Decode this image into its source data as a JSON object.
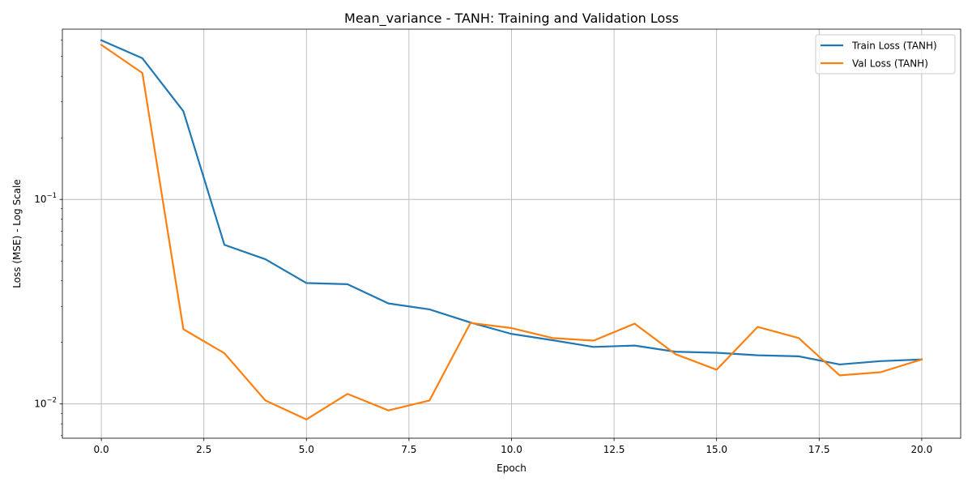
{
  "chart_data": {
    "type": "line",
    "title": "Mean_variance - TANH: Training and Validation Loss",
    "xlabel": "Epoch",
    "ylabel": "Loss (MSE) - Log Scale",
    "yscale": "log",
    "xlim": [
      -0.95,
      20.95
    ],
    "ylim": [
      0.0068,
      0.68
    ],
    "xticks": [
      0.0,
      2.5,
      5.0,
      7.5,
      10.0,
      12.5,
      15.0,
      17.5,
      20.0
    ],
    "xtick_labels": [
      "0.0",
      "2.5",
      "5.0",
      "7.5",
      "10.0",
      "12.5",
      "15.0",
      "17.5",
      "20.0"
    ],
    "yticks": [
      0.01,
      0.1
    ],
    "ytick_labels": [
      {
        "base": "10",
        "exp": "−2"
      },
      {
        "base": "10",
        "exp": "−1"
      }
    ],
    "grid": true,
    "legend_position": "upper-right",
    "x": [
      0,
      1,
      2,
      3,
      4,
      5,
      6,
      7,
      8,
      9,
      10,
      11,
      12,
      13,
      14,
      15,
      16,
      17,
      18,
      19,
      20
    ],
    "series": [
      {
        "name": "Train Loss (TANH)",
        "color": "#1f77b4",
        "values": [
          0.6,
          0.49,
          0.27,
          0.06,
          0.051,
          0.039,
          0.0385,
          0.031,
          0.029,
          0.025,
          0.022,
          0.0205,
          0.019,
          0.0193,
          0.018,
          0.0178,
          0.0173,
          0.0171,
          0.0156,
          0.0162,
          0.0165
        ]
      },
      {
        "name": "Val Loss (TANH)",
        "color": "#ff7f0e",
        "values": [
          0.57,
          0.415,
          0.0232,
          0.0177,
          0.0104,
          0.0084,
          0.0112,
          0.0093,
          0.0104,
          0.0249,
          0.0235,
          0.021,
          0.0204,
          0.0247,
          0.0175,
          0.0147,
          0.0238,
          0.021,
          0.0138,
          0.0143,
          0.0165
        ]
      }
    ]
  }
}
